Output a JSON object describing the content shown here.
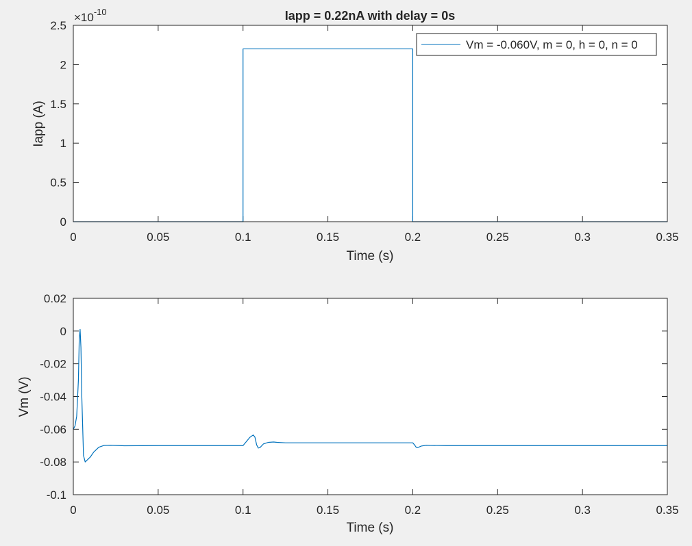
{
  "figure": {
    "background": "#f0f0f0",
    "axes_background": "#ffffff",
    "axis_color": "#262626",
    "line_color": "#0072bd"
  },
  "chart_data": [
    {
      "type": "line",
      "title": "Iapp = 0.22nA with delay = 0s",
      "xlabel": "Time (s)",
      "ylabel": "Iapp (A)",
      "exponent_label": "×10",
      "exponent_power": "-10",
      "xlim": [
        0,
        0.35
      ],
      "ylim": [
        0,
        2.5e-10
      ],
      "xticks": [
        0,
        0.05,
        0.1,
        0.15,
        0.2,
        0.25,
        0.3,
        0.35
      ],
      "xtick_labels": [
        "0",
        "0.05",
        "0.1",
        "0.15",
        "0.2",
        "0.25",
        "0.3",
        "0.35"
      ],
      "yticks": [
        0,
        5e-11,
        1e-10,
        1.5e-10,
        2e-10,
        2.5e-10
      ],
      "ytick_labels": [
        "0",
        "0.5",
        "1",
        "1.5",
        "2",
        "2.5"
      ],
      "grid": false,
      "legend_position": "top-right",
      "series": [
        {
          "name": "Vm = -0.060V, m = 0, h = 0, n = 0",
          "x": [
            0,
            0.1,
            0.1,
            0.2,
            0.2,
            0.35
          ],
          "y": [
            0,
            0,
            2.2e-10,
            2.2e-10,
            0,
            0
          ]
        }
      ]
    },
    {
      "type": "line",
      "xlabel": "Time (s)",
      "ylabel": "Vm (V)",
      "xlim": [
        0,
        0.35
      ],
      "ylim": [
        -0.1,
        0.02
      ],
      "xticks": [
        0,
        0.05,
        0.1,
        0.15,
        0.2,
        0.25,
        0.3,
        0.35
      ],
      "xtick_labels": [
        "0",
        "0.05",
        "0.1",
        "0.15",
        "0.2",
        "0.25",
        "0.3",
        "0.35"
      ],
      "yticks": [
        -0.1,
        -0.08,
        -0.06,
        -0.04,
        -0.02,
        0,
        0.02
      ],
      "ytick_labels": [
        "-0.1",
        "-0.08",
        "-0.06",
        "-0.04",
        "-0.02",
        "0",
        "0.02"
      ],
      "grid": false,
      "series": [
        {
          "x": [
            0,
            0.001,
            0.002,
            0.003,
            0.0035,
            0.004,
            0.0045,
            0.005,
            0.006,
            0.007,
            0.008,
            0.01,
            0.012,
            0.015,
            0.018,
            0.022,
            0.03,
            0.05,
            0.1,
            0.102,
            0.104,
            0.106,
            0.107,
            0.108,
            0.109,
            0.11,
            0.112,
            0.115,
            0.118,
            0.12,
            0.125,
            0.15,
            0.2,
            0.201,
            0.202,
            0.203,
            0.205,
            0.208,
            0.21,
            0.22,
            0.35
          ],
          "y": [
            -0.06,
            -0.058,
            -0.052,
            -0.03,
            -0.005,
            0.001,
            -0.01,
            -0.04,
            -0.076,
            -0.08,
            -0.079,
            -0.077,
            -0.074,
            -0.071,
            -0.0699,
            -0.0698,
            -0.0701,
            -0.07,
            -0.07,
            -0.0675,
            -0.065,
            -0.0635,
            -0.0648,
            -0.0695,
            -0.0715,
            -0.0712,
            -0.069,
            -0.068,
            -0.0678,
            -0.068,
            -0.0683,
            -0.0683,
            -0.0683,
            -0.0695,
            -0.071,
            -0.0712,
            -0.0703,
            -0.0698,
            -0.0699,
            -0.07,
            -0.07
          ]
        }
      ]
    }
  ]
}
